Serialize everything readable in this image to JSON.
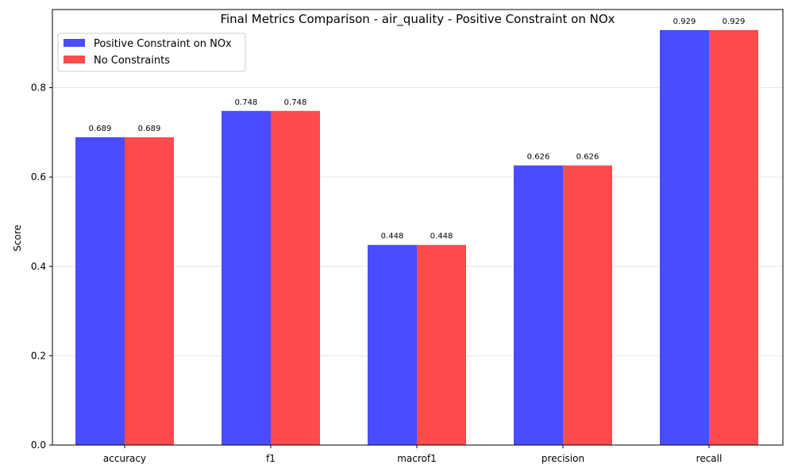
{
  "chart_data": {
    "type": "bar",
    "title": "Final Metrics Comparison - air_quality - Positive Constraint on NOx",
    "xlabel": "",
    "ylabel": "Score",
    "categories": [
      "accuracy",
      "f1",
      "macrof1",
      "precision",
      "recall"
    ],
    "series": [
      {
        "name": "Positive Constraint on NOx",
        "values": [
          0.689,
          0.748,
          0.448,
          0.626,
          0.929
        ],
        "color": "#4b4bff",
        "labels": [
          "0.689",
          "0.748",
          "0.448",
          "0.626",
          "0.929"
        ]
      },
      {
        "name": "No Constraints",
        "values": [
          0.689,
          0.748,
          0.448,
          0.626,
          0.929
        ],
        "color": "#ff4b4b",
        "labels": [
          "0.689",
          "0.748",
          "0.448",
          "0.626",
          "0.929"
        ]
      }
    ],
    "ylim": [
      0,
      0.975
    ],
    "yticks": [
      0.0,
      0.2,
      0.4,
      0.6,
      0.8
    ],
    "ytick_labels": [
      "0.0",
      "0.2",
      "0.4",
      "0.6",
      "0.8"
    ],
    "grid": "y",
    "legend_position": "top-left"
  }
}
